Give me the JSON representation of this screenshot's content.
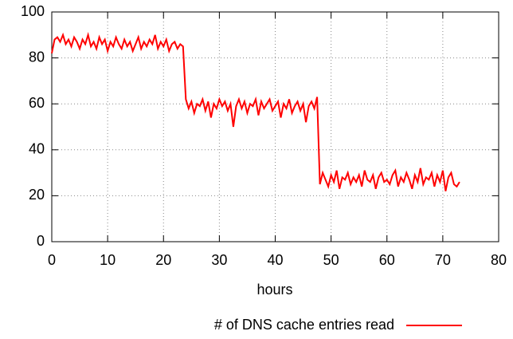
{
  "chart_data": {
    "type": "line",
    "xlabel": "hours",
    "xlim": [
      0,
      80
    ],
    "xticks": [
      0,
      10,
      20,
      30,
      40,
      50,
      60,
      70,
      80
    ],
    "ylim": [
      0,
      100
    ],
    "yticks": [
      0,
      20,
      40,
      60,
      80,
      100
    ],
    "grid": true,
    "legend": "bottom",
    "x": [
      0,
      0.5,
      1,
      1.5,
      2,
      2.5,
      3,
      3.5,
      4,
      4.5,
      5,
      5.5,
      6,
      6.5,
      7,
      7.5,
      8,
      8.5,
      9,
      9.5,
      10,
      10.5,
      11,
      11.5,
      12,
      12.5,
      13,
      13.5,
      14,
      14.5,
      15,
      15.5,
      16,
      16.5,
      17,
      17.5,
      18,
      18.5,
      19,
      19.5,
      20,
      20.5,
      21,
      21.5,
      22,
      22.5,
      23,
      23.5,
      24,
      24.5,
      25,
      25.5,
      26,
      26.5,
      27,
      27.5,
      28,
      28.5,
      29,
      29.5,
      30,
      30.5,
      31,
      31.5,
      32,
      32.5,
      33,
      33.5,
      34,
      34.5,
      35,
      35.5,
      36,
      36.5,
      37,
      37.5,
      38,
      38.5,
      39,
      39.5,
      40,
      40.5,
      41,
      41.5,
      42,
      42.5,
      43,
      43.5,
      44,
      44.5,
      45,
      45.5,
      46,
      46.5,
      47,
      47.5,
      48,
      48.5,
      49,
      49.5,
      50,
      50.5,
      51,
      51.5,
      52,
      52.5,
      53,
      53.5,
      54,
      54.5,
      55,
      55.5,
      56,
      56.5,
      57,
      57.5,
      58,
      58.5,
      59,
      59.5,
      60,
      60.5,
      61,
      61.5,
      62,
      62.5,
      63,
      63.5,
      64,
      64.5,
      65,
      65.5,
      66,
      66.5,
      67,
      67.5,
      68,
      68.5,
      69,
      69.5,
      70,
      70.5,
      71,
      71.5,
      72,
      72.5,
      73
    ],
    "series": [
      {
        "name": "# of DNS cache entries read",
        "color": "#ff0000",
        "values": [
          82,
          88,
          89,
          87,
          90,
          86,
          88,
          85,
          89,
          87,
          84,
          88,
          86,
          90,
          85,
          87,
          84,
          89,
          86,
          88,
          83,
          87,
          85,
          89,
          86,
          84,
          88,
          85,
          87,
          83,
          86,
          89,
          84,
          87,
          85,
          88,
          86,
          90,
          84,
          87,
          85,
          88,
          83,
          86,
          87,
          84,
          86,
          85,
          62,
          58,
          61,
          56,
          60,
          59,
          62,
          57,
          61,
          54,
          60,
          58,
          62,
          59,
          61,
          57,
          60,
          50,
          59,
          62,
          58,
          61,
          56,
          60,
          59,
          62,
          55,
          61,
          58,
          60,
          62,
          57,
          59,
          61,
          54,
          60,
          58,
          62,
          56,
          59,
          61,
          57,
          60,
          52,
          59,
          61,
          58,
          63,
          25,
          30,
          27,
          24,
          29,
          26,
          31,
          23,
          28,
          27,
          30,
          25,
          28,
          26,
          29,
          24,
          31,
          27,
          26,
          29,
          23,
          28,
          30,
          26,
          27,
          25,
          29,
          31,
          24,
          28,
          26,
          30,
          27,
          23,
          29,
          26,
          32,
          25,
          28,
          27,
          30,
          24,
          29,
          26,
          31,
          22,
          28,
          30,
          25,
          24,
          26
        ]
      }
    ]
  }
}
